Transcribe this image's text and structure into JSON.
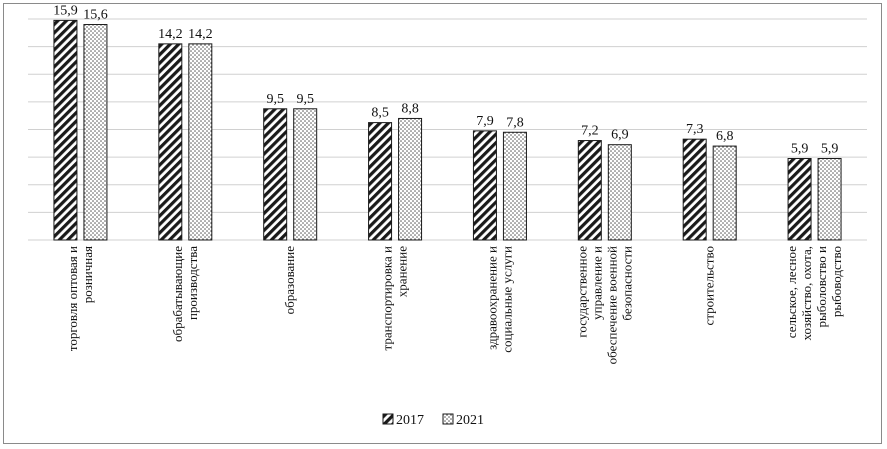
{
  "chart_data": {
    "type": "bar",
    "categories": [
      [
        "торговля оптовая и",
        "розничная"
      ],
      [
        "обрабатывающие",
        "производства"
      ],
      [
        "образование"
      ],
      [
        "транспортировка и",
        "хранение"
      ],
      [
        "здравоохранение и",
        "социальные услуги"
      ],
      [
        "государственное",
        "управление и",
        "обеспечение военной",
        "безопасности"
      ],
      [
        "строительство"
      ],
      [
        "сельское, лесное",
        "хозяйство, охота,",
        "рыболовство и",
        "рыбоводство"
      ]
    ],
    "series": [
      {
        "name": "2017",
        "values": [
          15.9,
          14.2,
          9.5,
          8.5,
          7.9,
          7.2,
          7.3,
          5.9
        ],
        "labels": [
          "15,9",
          "14,2",
          "9,5",
          "8,5",
          "7,9",
          "7,2",
          "7,3",
          "5,9"
        ],
        "pattern": "diagonal-hatch"
      },
      {
        "name": "2021",
        "values": [
          15.6,
          14.2,
          9.5,
          8.8,
          7.8,
          6.9,
          6.8,
          5.9
        ],
        "labels": [
          "15,6",
          "14,2",
          "9,5",
          "8,8",
          "7,8",
          "6,9",
          "6,8",
          "5,9"
        ],
        "pattern": "dots"
      }
    ],
    "ylim": [
      0,
      16
    ],
    "grid": true,
    "legend_position": "bottom-center",
    "colors": {
      "bar_stroke": "#1a1a1a",
      "grid": "#d0d0d0",
      "hatch": "#1a1a1a",
      "dots": "#4a4a4a"
    }
  }
}
